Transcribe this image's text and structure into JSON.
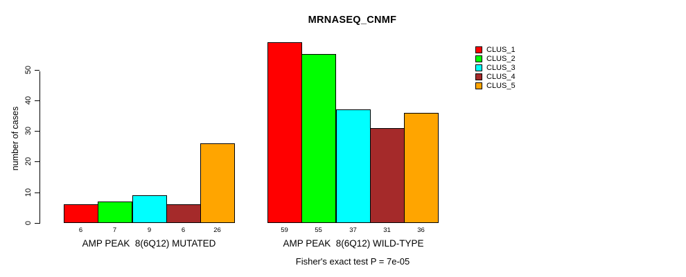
{
  "chart_data": {
    "type": "bar",
    "title": "MRNASEQ_CNMF",
    "ylabel": "number of cases",
    "xlabel": "",
    "subtitle": "Fisher's exact test P = 7e-05",
    "yticks": [
      0,
      10,
      20,
      30,
      40,
      50
    ],
    "ylim": [
      0,
      59
    ],
    "grid": false,
    "legend_position": "top-right",
    "series_labels": [
      "CLUS_1",
      "CLUS_2",
      "CLUS_3",
      "CLUS_4",
      "CLUS_5"
    ],
    "colors": [
      "#FF0000",
      "#00FF00",
      "#00FFFF",
      "#A52A2A",
      "#FFA500"
    ],
    "background_color": "#FFFFFF",
    "axis_color": "#000000",
    "groups": [
      {
        "key": "mutated",
        "label": "AMP PEAK  8(6Q12) MUTATED",
        "values": [
          6,
          7,
          9,
          6,
          26
        ]
      },
      {
        "key": "wild-type",
        "label": "AMP PEAK  8(6Q12) WILD-TYPE",
        "values": [
          59,
          55,
          37,
          31,
          36
        ]
      }
    ]
  }
}
